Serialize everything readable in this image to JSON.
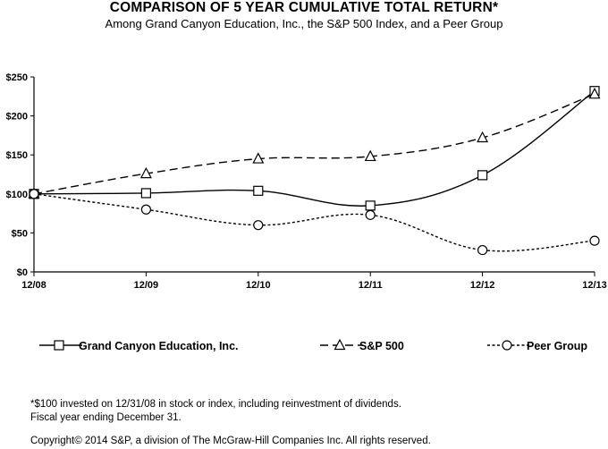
{
  "chart_data": {
    "type": "line",
    "title": "COMPARISON OF 5 YEAR CUMULATIVE TOTAL RETURN*",
    "subtitle": "Among Grand Canyon Education, Inc., the S&P 500 Index, and a Peer Group",
    "categories": [
      "12/08",
      "12/09",
      "12/10",
      "12/11",
      "12/12",
      "12/13"
    ],
    "yticks": [
      "$0",
      "$50",
      "$100",
      "$150",
      "$200",
      "$250"
    ],
    "ylim": [
      0,
      250
    ],
    "grid": false,
    "legend_position": "bottom",
    "series": [
      {
        "name": "Grand Canyon Education, Inc.",
        "values": [
          100,
          101,
          104,
          85,
          124,
          232
        ],
        "dash": "solid",
        "marker": "square",
        "color": "#000000"
      },
      {
        "name": "S&P 500",
        "values": [
          100,
          126,
          145,
          148,
          172,
          228
        ],
        "dash": "long-dash",
        "marker": "triangle",
        "color": "#000000"
      },
      {
        "name": "Peer Group",
        "values": [
          100,
          80,
          60,
          73,
          28,
          40
        ],
        "dash": "short-dash",
        "marker": "circle",
        "color": "#000000"
      }
    ]
  },
  "footnotes": {
    "note": "*$100 invested on 12/31/08 in stock or index, including reinvestment of dividends.",
    "fiscal": "Fiscal year ending December 31.",
    "copyright": "Copyright© 2014 S&P, a division of The McGraw-Hill Companies Inc. All rights reserved."
  }
}
